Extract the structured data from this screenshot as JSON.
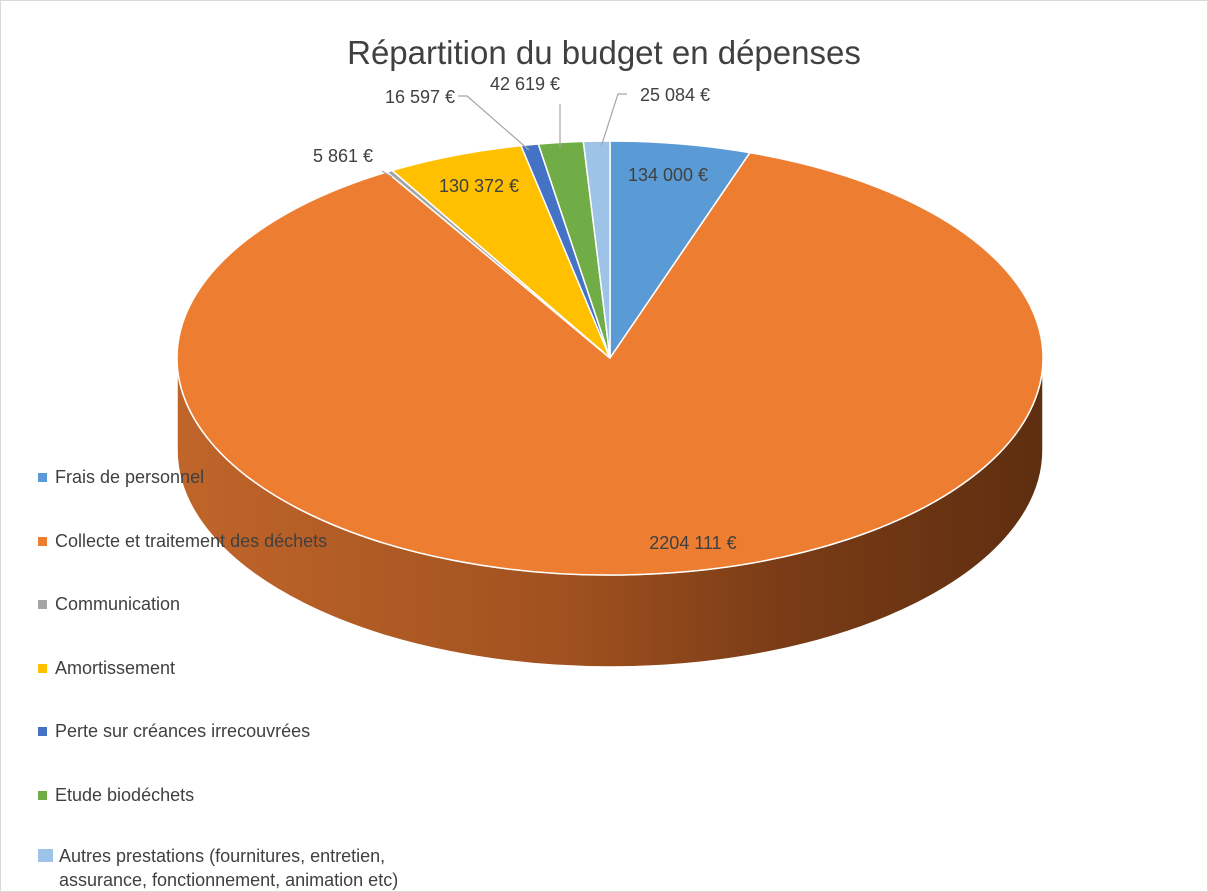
{
  "chart_data": {
    "type": "pie",
    "title": "Répartition du budget en dépenses",
    "series": [
      {
        "name": "Frais de personnel",
        "value": 134000,
        "label": "134 000 €",
        "color": "#5b9bd5"
      },
      {
        "name": "Collecte et traitement des déchets",
        "value": 2204111,
        "label": "2204 111 €",
        "color": "#ed7d31"
      },
      {
        "name": "Communication",
        "value": 5861,
        "label": "5 861 €",
        "color": "#a5a5a5"
      },
      {
        "name": "Amortissement",
        "value": 130372,
        "label": "130 372 €",
        "color": "#ffc000"
      },
      {
        "name": "Perte sur créances irrecouvrées",
        "value": 16597,
        "label": "16 597 €",
        "color": "#4472c4"
      },
      {
        "name": "Etude biodéchets",
        "value": 42619,
        "label": "42 619 €",
        "color": "#70ad47"
      },
      {
        "name": "Autres prestations (fournitures, entretien, assurance, fonctionnement, animation etc)",
        "value": 25084,
        "label": "25 084 €",
        "color": "#9dc3e6"
      }
    ],
    "legend_position": "left",
    "style": "3d"
  }
}
